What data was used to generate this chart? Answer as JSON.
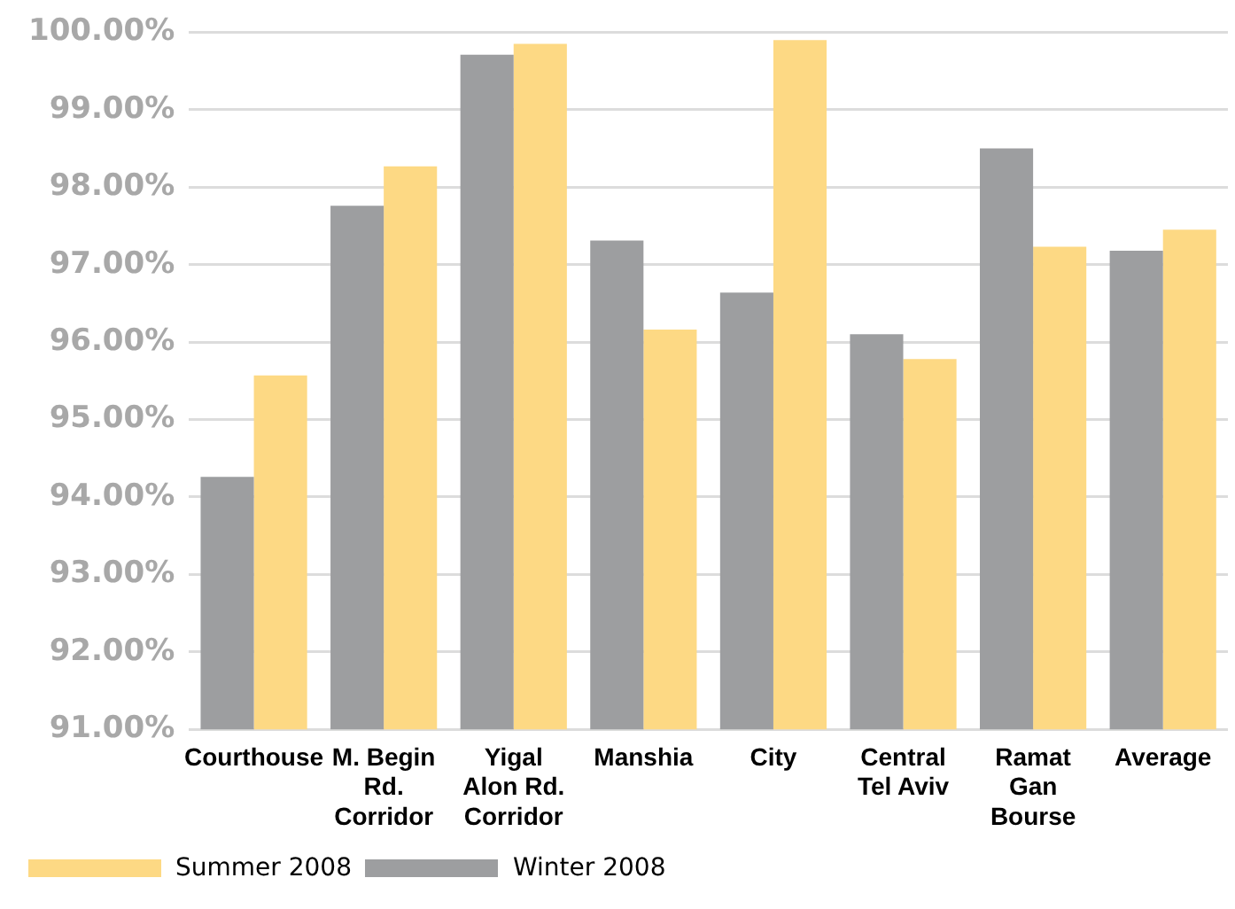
{
  "chart_data": {
    "type": "bar",
    "categories": [
      "Courthouse",
      "M. Begin Rd. Corridor",
      "Yigal Alon Rd. Corridor",
      "Manshia",
      "City",
      "Central Tel Aviv",
      "Ramat Gan Bourse",
      "Average"
    ],
    "series": [
      {
        "name": "Winter 2008",
        "color": "#9d9ea0",
        "values": [
          94.26,
          97.76,
          99.71,
          97.31,
          96.64,
          96.1,
          98.5,
          97.18
        ]
      },
      {
        "name": "Summer 2008",
        "color": "#fdd984",
        "values": [
          95.57,
          98.27,
          99.85,
          96.16,
          99.9,
          95.78,
          97.23,
          97.45
        ]
      }
    ],
    "ylim": [
      91,
      100
    ],
    "yticks": [
      {
        "value": 91,
        "label": "91.00%"
      },
      {
        "value": 92,
        "label": "92.00%"
      },
      {
        "value": 93,
        "label": "93.00%"
      },
      {
        "value": 94,
        "label": "94.00%"
      },
      {
        "value": 95,
        "label": "95.00%"
      },
      {
        "value": 96,
        "label": "96.00%"
      },
      {
        "value": 97,
        "label": "97.00%"
      },
      {
        "value": 98,
        "label": "98.00%"
      },
      {
        "value": 99,
        "label": "99.00%"
      },
      {
        "value": 100,
        "label": "100.00%"
      }
    ],
    "grid": "y",
    "legend": "bottom left"
  }
}
